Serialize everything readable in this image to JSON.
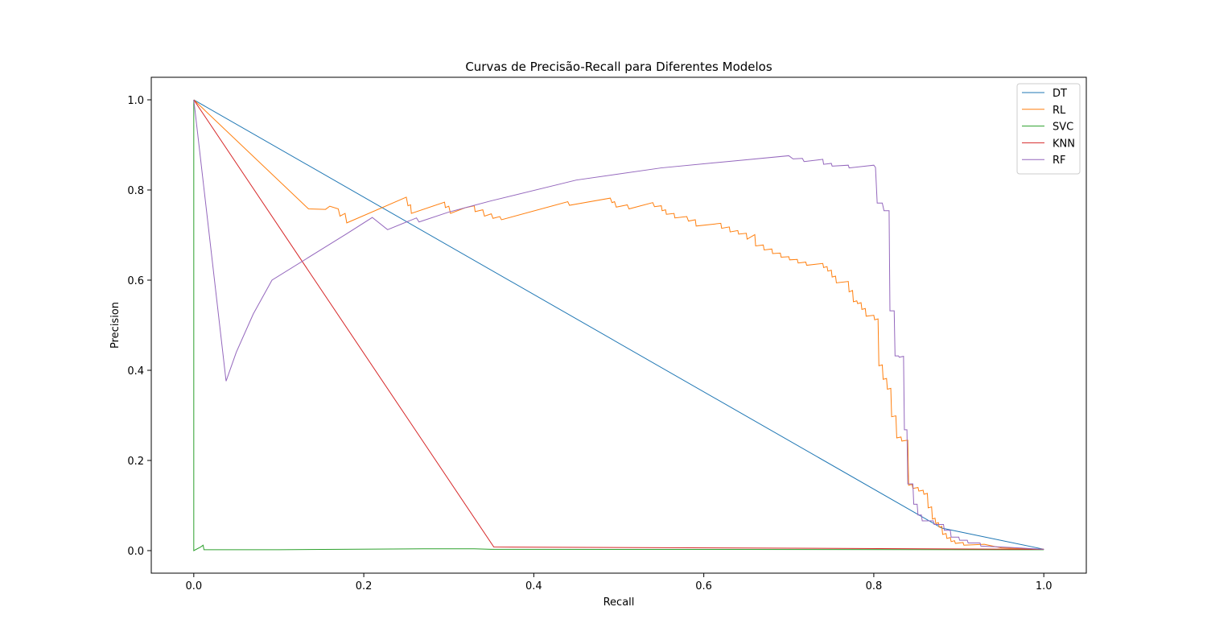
{
  "chart_data": {
    "type": "line",
    "title": "Curvas de Precisão-Recall para Diferentes Modelos",
    "xlabel": "Recall",
    "ylabel": "Precision",
    "xlim": [
      -0.05,
      1.05
    ],
    "ylim": [
      -0.05,
      1.05
    ],
    "x_ticks": [
      "0.0",
      "0.2",
      "0.4",
      "0.6",
      "0.8",
      "1.0"
    ],
    "y_ticks": [
      "0.0",
      "0.2",
      "0.4",
      "0.6",
      "0.8",
      "1.0"
    ],
    "grid": false,
    "legend_position": "top-right",
    "series": [
      {
        "name": "DT",
        "color": "#1f77b4",
        "points": [
          [
            0.0,
            1.0
          ],
          [
            0.88,
            0.05
          ],
          [
            1.0,
            0.003
          ]
        ]
      },
      {
        "name": "RL",
        "color": "#ff7f0e",
        "points": [
          [
            0.0,
            1.0
          ],
          [
            0.135,
            0.758
          ],
          [
            0.155,
            0.757
          ],
          [
            0.16,
            0.764
          ],
          [
            0.17,
            0.758
          ],
          [
            0.172,
            0.742
          ],
          [
            0.178,
            0.748
          ],
          [
            0.18,
            0.727
          ],
          [
            0.25,
            0.784
          ],
          [
            0.252,
            0.765
          ],
          [
            0.255,
            0.767
          ],
          [
            0.256,
            0.748
          ],
          [
            0.295,
            0.773
          ],
          [
            0.296,
            0.761
          ],
          [
            0.3,
            0.764
          ],
          [
            0.302,
            0.748
          ],
          [
            0.32,
            0.761
          ],
          [
            0.33,
            0.765
          ],
          [
            0.331,
            0.752
          ],
          [
            0.34,
            0.756
          ],
          [
            0.342,
            0.742
          ],
          [
            0.35,
            0.747
          ],
          [
            0.352,
            0.737
          ],
          [
            0.36,
            0.741
          ],
          [
            0.362,
            0.734
          ],
          [
            0.44,
            0.774
          ],
          [
            0.442,
            0.766
          ],
          [
            0.49,
            0.782
          ],
          [
            0.492,
            0.772
          ],
          [
            0.495,
            0.774
          ],
          [
            0.497,
            0.762
          ],
          [
            0.51,
            0.767
          ],
          [
            0.512,
            0.758
          ],
          [
            0.54,
            0.772
          ],
          [
            0.542,
            0.763
          ],
          [
            0.55,
            0.765
          ],
          [
            0.551,
            0.754
          ],
          [
            0.555,
            0.756
          ],
          [
            0.556,
            0.746
          ],
          [
            0.565,
            0.748
          ],
          [
            0.566,
            0.738
          ],
          [
            0.58,
            0.741
          ],
          [
            0.582,
            0.731
          ],
          [
            0.59,
            0.734
          ],
          [
            0.591,
            0.72
          ],
          [
            0.62,
            0.726
          ],
          [
            0.621,
            0.715
          ],
          [
            0.63,
            0.718
          ],
          [
            0.631,
            0.707
          ],
          [
            0.64,
            0.71
          ],
          [
            0.641,
            0.702
          ],
          [
            0.65,
            0.704
          ],
          [
            0.651,
            0.691
          ],
          [
            0.66,
            0.701
          ],
          [
            0.661,
            0.676
          ],
          [
            0.67,
            0.678
          ],
          [
            0.671,
            0.667
          ],
          [
            0.68,
            0.669
          ],
          [
            0.681,
            0.659
          ],
          [
            0.69,
            0.66
          ],
          [
            0.691,
            0.651
          ],
          [
            0.7,
            0.652
          ],
          [
            0.701,
            0.645
          ],
          [
            0.71,
            0.646
          ],
          [
            0.711,
            0.638
          ],
          [
            0.72,
            0.64
          ],
          [
            0.721,
            0.633
          ],
          [
            0.74,
            0.637
          ],
          [
            0.741,
            0.628
          ],
          [
            0.745,
            0.63
          ],
          [
            0.746,
            0.62
          ],
          [
            0.75,
            0.622
          ],
          [
            0.751,
            0.607
          ],
          [
            0.755,
            0.609
          ],
          [
            0.756,
            0.594
          ],
          [
            0.77,
            0.597
          ],
          [
            0.771,
            0.574
          ],
          [
            0.775,
            0.577
          ],
          [
            0.776,
            0.552
          ],
          [
            0.78,
            0.554
          ],
          [
            0.781,
            0.548
          ],
          [
            0.785,
            0.55
          ],
          [
            0.786,
            0.535
          ],
          [
            0.79,
            0.537
          ],
          [
            0.791,
            0.52
          ],
          [
            0.8,
            0.522
          ],
          [
            0.801,
            0.512
          ],
          [
            0.805,
            0.514
          ],
          [
            0.806,
            0.41
          ],
          [
            0.81,
            0.412
          ],
          [
            0.811,
            0.38
          ],
          [
            0.815,
            0.382
          ],
          [
            0.816,
            0.358
          ],
          [
            0.82,
            0.36
          ],
          [
            0.821,
            0.297
          ],
          [
            0.826,
            0.299
          ],
          [
            0.827,
            0.25
          ],
          [
            0.832,
            0.252
          ],
          [
            0.833,
            0.243
          ],
          [
            0.84,
            0.245
          ],
          [
            0.841,
            0.145
          ],
          [
            0.845,
            0.147
          ],
          [
            0.846,
            0.138
          ],
          [
            0.852,
            0.14
          ],
          [
            0.853,
            0.132
          ],
          [
            0.858,
            0.134
          ],
          [
            0.859,
            0.125
          ],
          [
            0.863,
            0.127
          ],
          [
            0.864,
            0.095
          ],
          [
            0.868,
            0.097
          ],
          [
            0.869,
            0.07
          ],
          [
            0.872,
            0.072
          ],
          [
            0.873,
            0.06
          ],
          [
            0.876,
            0.062
          ],
          [
            0.877,
            0.052
          ],
          [
            0.88,
            0.054
          ],
          [
            0.881,
            0.036
          ],
          [
            0.885,
            0.038
          ],
          [
            0.886,
            0.027
          ],
          [
            0.89,
            0.029
          ],
          [
            0.891,
            0.02
          ],
          [
            0.895,
            0.022
          ],
          [
            0.896,
            0.016
          ],
          [
            0.905,
            0.018
          ],
          [
            0.906,
            0.012
          ],
          [
            0.93,
            0.014
          ],
          [
            0.95,
            0.006
          ],
          [
            1.0,
            0.003
          ]
        ]
      },
      {
        "name": "SVC",
        "color": "#2ca02c",
        "points": [
          [
            0.0,
            1.0
          ],
          [
            0.0,
            0.0
          ],
          [
            0.008,
            0.008
          ],
          [
            0.011,
            0.012
          ],
          [
            0.012,
            0.002
          ],
          [
            0.1,
            0.002
          ],
          [
            0.27,
            0.004
          ],
          [
            0.33,
            0.004
          ],
          [
            0.35,
            0.003
          ],
          [
            1.0,
            0.002
          ]
        ]
      },
      {
        "name": "KNN",
        "color": "#d62728",
        "points": [
          [
            0.0,
            1.0
          ],
          [
            0.353,
            0.008
          ],
          [
            1.0,
            0.003
          ]
        ]
      },
      {
        "name": "RF",
        "color": "#9467bd",
        "points": [
          [
            0.0,
            1.0
          ],
          [
            0.038,
            0.376
          ],
          [
            0.05,
            0.44
          ],
          [
            0.07,
            0.525
          ],
          [
            0.092,
            0.6
          ],
          [
            0.15,
            0.668
          ],
          [
            0.18,
            0.703
          ],
          [
            0.21,
            0.739
          ],
          [
            0.228,
            0.712
          ],
          [
            0.262,
            0.738
          ],
          [
            0.265,
            0.729
          ],
          [
            0.3,
            0.751
          ],
          [
            0.35,
            0.776
          ],
          [
            0.45,
            0.822
          ],
          [
            0.55,
            0.849
          ],
          [
            0.65,
            0.867
          ],
          [
            0.7,
            0.876
          ],
          [
            0.705,
            0.869
          ],
          [
            0.716,
            0.87
          ],
          [
            0.718,
            0.863
          ],
          [
            0.74,
            0.868
          ],
          [
            0.741,
            0.857
          ],
          [
            0.75,
            0.859
          ],
          [
            0.751,
            0.853
          ],
          [
            0.77,
            0.855
          ],
          [
            0.771,
            0.849
          ],
          [
            0.79,
            0.853
          ],
          [
            0.8,
            0.855
          ],
          [
            0.802,
            0.85
          ],
          [
            0.804,
            0.771
          ],
          [
            0.81,
            0.771
          ],
          [
            0.812,
            0.754
          ],
          [
            0.818,
            0.754
          ],
          [
            0.819,
            0.532
          ],
          [
            0.824,
            0.532
          ],
          [
            0.825,
            0.432
          ],
          [
            0.829,
            0.432
          ],
          [
            0.83,
            0.429
          ],
          [
            0.835,
            0.431
          ],
          [
            0.836,
            0.268
          ],
          [
            0.839,
            0.268
          ],
          [
            0.84,
            0.148
          ],
          [
            0.846,
            0.148
          ],
          [
            0.847,
            0.103
          ],
          [
            0.851,
            0.103
          ],
          [
            0.852,
            0.079
          ],
          [
            0.856,
            0.079
          ],
          [
            0.857,
            0.066
          ],
          [
            0.87,
            0.066
          ],
          [
            0.871,
            0.058
          ],
          [
            0.882,
            0.058
          ],
          [
            0.883,
            0.045
          ],
          [
            0.89,
            0.045
          ],
          [
            0.891,
            0.03
          ],
          [
            0.9,
            0.03
          ],
          [
            0.901,
            0.023
          ],
          [
            0.91,
            0.023
          ],
          [
            0.911,
            0.017
          ],
          [
            0.925,
            0.017
          ],
          [
            0.926,
            0.01
          ],
          [
            0.95,
            0.008
          ],
          [
            1.0,
            0.003
          ]
        ]
      }
    ]
  }
}
